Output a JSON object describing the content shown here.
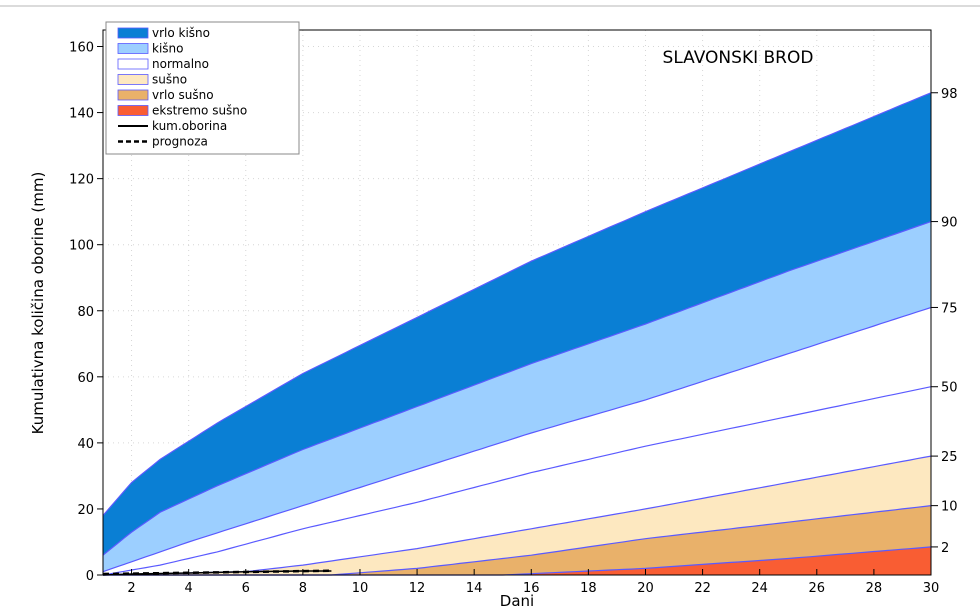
{
  "chart_data": {
    "type": "area",
    "title": "SLAVONSKI BROD",
    "xlabel": "Dani",
    "ylabel": "Kumulativna količina oborine (mm)",
    "xlim": [
      1,
      30
    ],
    "ylim": [
      0,
      165
    ],
    "x_ticks": [
      "2",
      "4",
      "6",
      "8",
      "10",
      "12",
      "14",
      "16",
      "18",
      "20",
      "22",
      "24",
      "26",
      "28",
      "30"
    ],
    "y_ticks": [
      "0",
      "20",
      "40",
      "60",
      "80",
      "100",
      "120",
      "140",
      "160"
    ],
    "grid": true,
    "legend_position": "top-left",
    "percentile_curves": [
      {
        "label": "98",
        "x": [
          1,
          2,
          3,
          5,
          8,
          12,
          16,
          20,
          25,
          30
        ],
        "y": [
          18,
          28,
          35,
          46,
          61,
          78,
          95,
          110,
          128,
          146
        ]
      },
      {
        "label": "90",
        "x": [
          1,
          2,
          3,
          5,
          8,
          12,
          16,
          20,
          25,
          30
        ],
        "y": [
          6,
          13,
          19,
          27,
          38,
          51,
          64,
          76,
          92,
          107
        ]
      },
      {
        "label": "75",
        "x": [
          1,
          2,
          4,
          8,
          12,
          16,
          20,
          25,
          30
        ],
        "y": [
          1,
          4,
          10,
          21,
          32,
          43,
          53,
          67,
          81
        ]
      },
      {
        "label": "50",
        "x": [
          1,
          3,
          5,
          8,
          12,
          16,
          20,
          25,
          30
        ],
        "y": [
          0,
          3,
          7,
          14,
          22,
          31,
          39,
          48,
          57
        ]
      },
      {
        "label": "25",
        "x": [
          1,
          6,
          8,
          12,
          16,
          20,
          25,
          30
        ],
        "y": [
          0,
          1,
          3,
          8,
          14,
          20,
          28,
          36
        ]
      },
      {
        "label": "10",
        "x": [
          1,
          9,
          12,
          16,
          20,
          25,
          30
        ],
        "y": [
          0,
          0,
          2,
          6,
          11,
          16,
          21
        ]
      },
      {
        "label": "2",
        "x": [
          1,
          15,
          20,
          25,
          30
        ],
        "y": [
          0,
          0,
          2,
          5,
          8.5
        ]
      }
    ],
    "bands": [
      {
        "name": "vrlo kišno",
        "lower": "90",
        "upper": "98",
        "color": "#0a7fd4"
      },
      {
        "name": "kišno",
        "lower": "75",
        "upper": "90",
        "color": "#9ccfff"
      },
      {
        "name": "normalno",
        "lower": "25",
        "upper": "75",
        "color": "#ffffff"
      },
      {
        "name": "sušno",
        "lower": "10",
        "upper": "25",
        "color": "#fde8c0"
      },
      {
        "name": "vrlo sušno",
        "lower": "2",
        "upper": "10",
        "color": "#e9b16a"
      },
      {
        "name": "ekstremo sušno",
        "lower": "0",
        "upper": "2",
        "color": "#f95d33"
      }
    ],
    "observed": {
      "name": "kum.oborina",
      "x": [
        1,
        2,
        4,
        6,
        8,
        9
      ],
      "y": [
        0,
        0.3,
        0.6,
        1,
        1.2,
        1.2
      ]
    },
    "forecast": {
      "name": "prognoza",
      "x": [
        1,
        9
      ],
      "y": [
        0.3,
        1.3
      ]
    },
    "legend": [
      {
        "name": "vrlo kišno",
        "kind": "patch",
        "color": "#0a7fd4"
      },
      {
        "name": "kišno",
        "kind": "patch",
        "color": "#9ccfff"
      },
      {
        "name": "normalno",
        "kind": "patch",
        "color": "#ffffff"
      },
      {
        "name": "sušno",
        "kind": "patch",
        "color": "#fde8c0"
      },
      {
        "name": "vrlo sušno",
        "kind": "patch",
        "color": "#e9b16a"
      },
      {
        "name": "ekstremo sušno",
        "kind": "patch",
        "color": "#f95d33"
      },
      {
        "name": "kum.oborina",
        "kind": "line",
        "color": "#000000"
      },
      {
        "name": "prognoza",
        "kind": "dashed",
        "color": "#000000"
      }
    ],
    "percentile_line_color": "#5a5aff"
  }
}
